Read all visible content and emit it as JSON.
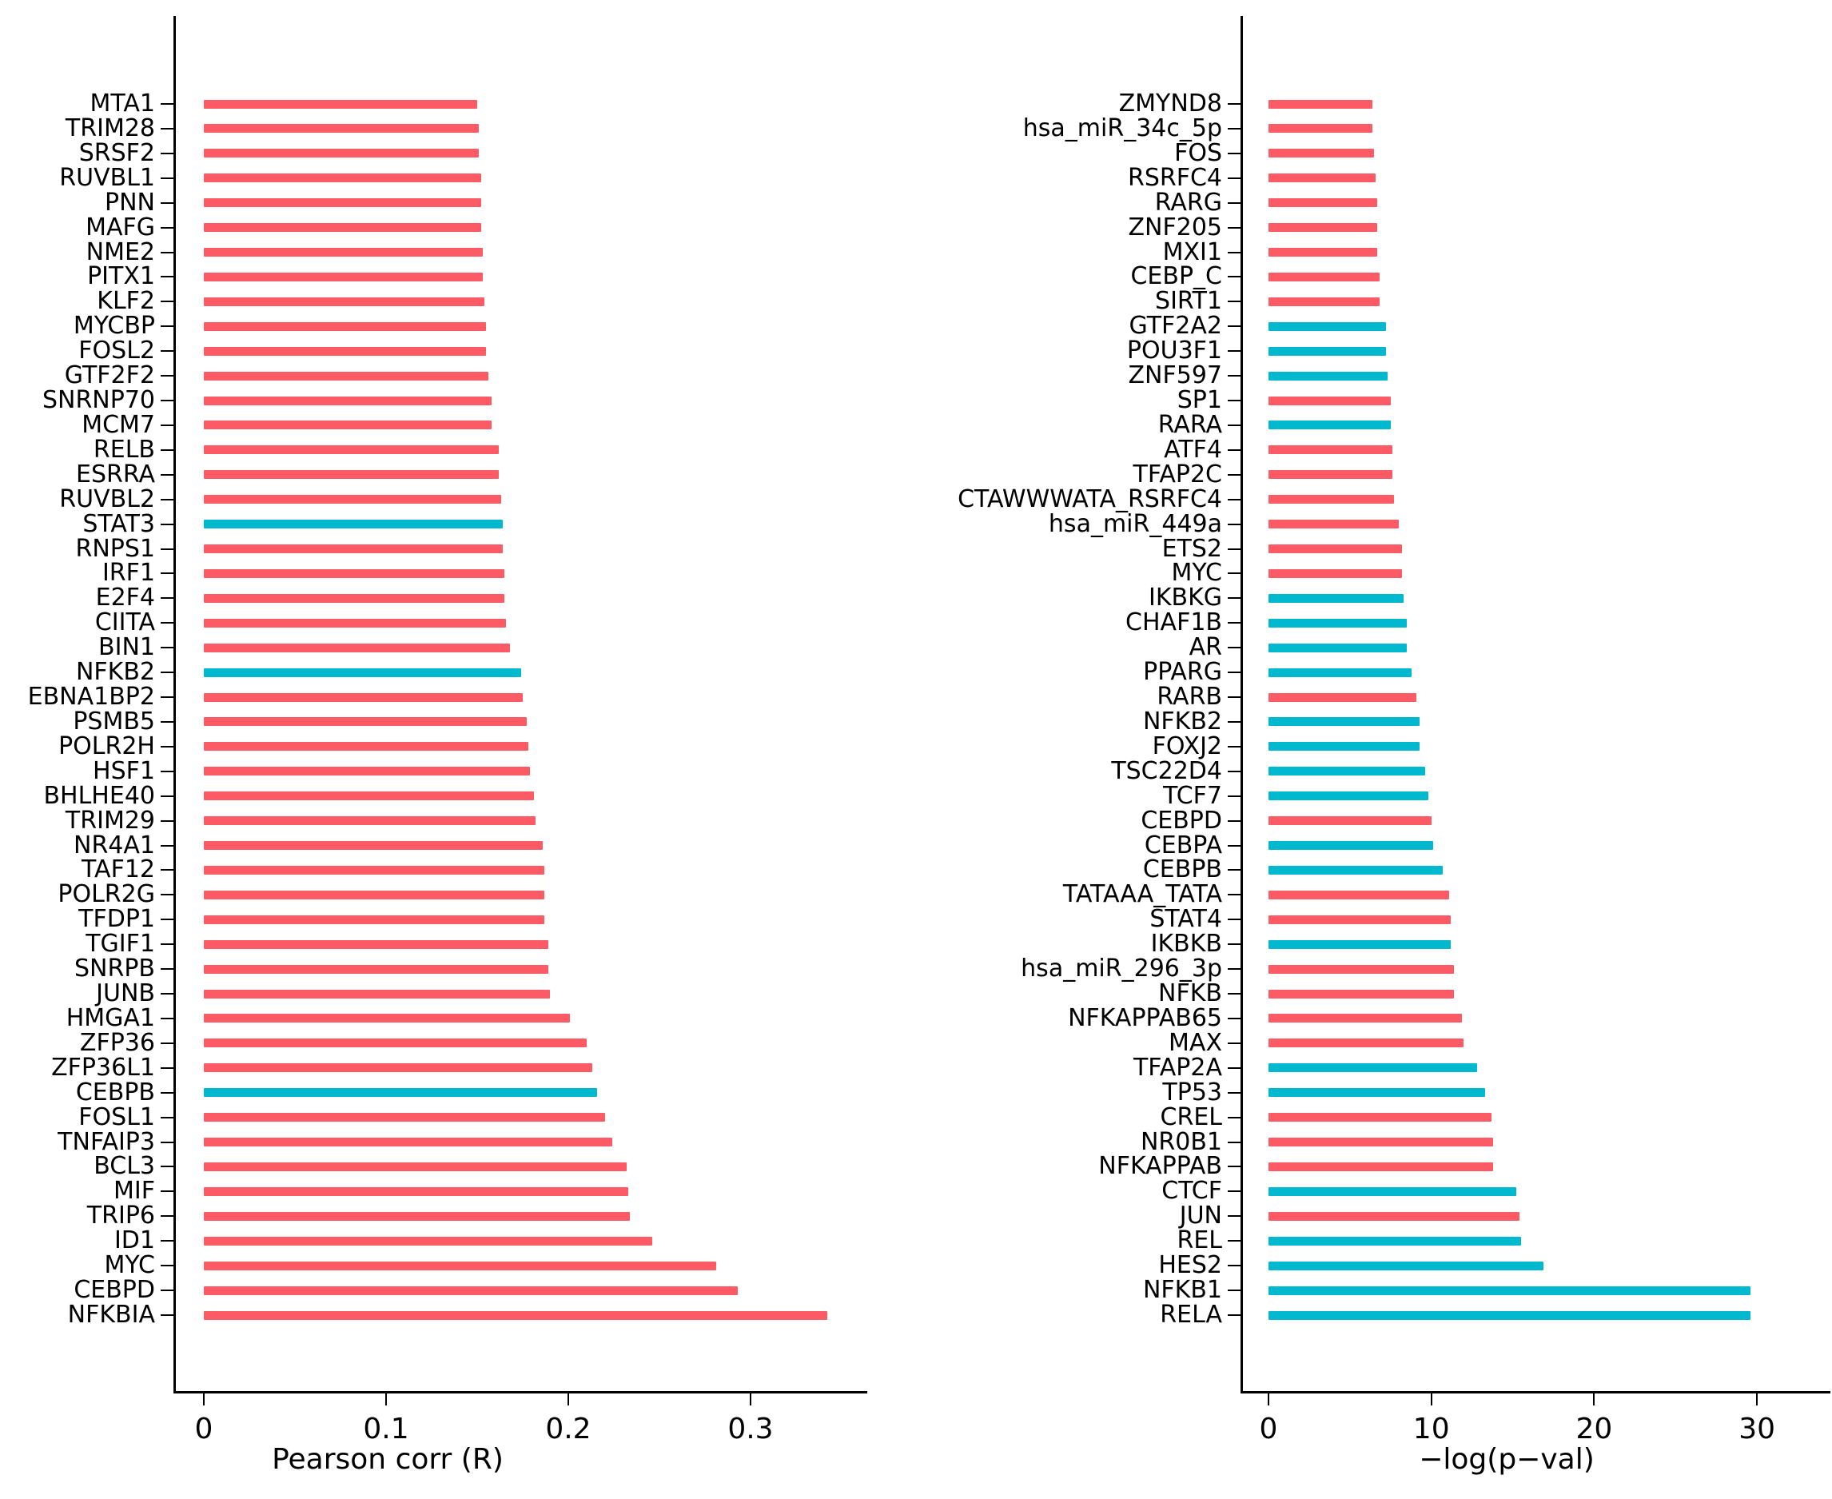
{
  "colors": {
    "red": "#FC5A64",
    "blue": "#00B9CF"
  },
  "chart_data": [
    {
      "type": "bar",
      "orientation": "horizontal",
      "xlabel": "Pearson corr (R)",
      "xlim": [
        -0.01535,
        0.36405
      ],
      "grid": false,
      "x_ticks": [
        {
          "value": 0,
          "label": "0"
        },
        {
          "value": 0.1,
          "label": "0.1"
        },
        {
          "value": 0.2,
          "label": "0.2"
        },
        {
          "value": 0.3,
          "label": "0.3"
        }
      ],
      "bars": [
        {
          "label": "MTA1",
          "value": 0.15,
          "color": "red"
        },
        {
          "label": "TRIM28",
          "value": 0.151,
          "color": "red"
        },
        {
          "label": "SRSF2",
          "value": 0.151,
          "color": "red"
        },
        {
          "label": "RUVBL1",
          "value": 0.152,
          "color": "red"
        },
        {
          "label": "PNN",
          "value": 0.152,
          "color": "red"
        },
        {
          "label": "MAFG",
          "value": 0.152,
          "color": "red"
        },
        {
          "label": "NME2",
          "value": 0.153,
          "color": "red"
        },
        {
          "label": "PITX1",
          "value": 0.153,
          "color": "red"
        },
        {
          "label": "KLF2",
          "value": 0.154,
          "color": "red"
        },
        {
          "label": "MYCBP",
          "value": 0.155,
          "color": "red"
        },
        {
          "label": "FOSL2",
          "value": 0.155,
          "color": "red"
        },
        {
          "label": "GTF2F2",
          "value": 0.156,
          "color": "red"
        },
        {
          "label": "SNRNP70",
          "value": 0.158,
          "color": "red"
        },
        {
          "label": "MCM7",
          "value": 0.158,
          "color": "red"
        },
        {
          "label": "RELB",
          "value": 0.162,
          "color": "red"
        },
        {
          "label": "ESRRA",
          "value": 0.162,
          "color": "red"
        },
        {
          "label": "RUVBL2",
          "value": 0.163,
          "color": "red"
        },
        {
          "label": "STAT3",
          "value": 0.164,
          "color": "blue"
        },
        {
          "label": "RNPS1",
          "value": 0.164,
          "color": "red"
        },
        {
          "label": "IRF1",
          "value": 0.165,
          "color": "red"
        },
        {
          "label": "E2F4",
          "value": 0.165,
          "color": "red"
        },
        {
          "label": "CIITA",
          "value": 0.166,
          "color": "red"
        },
        {
          "label": "BIN1",
          "value": 0.168,
          "color": "red"
        },
        {
          "label": "NFKB2",
          "value": 0.174,
          "color": "blue"
        },
        {
          "label": "EBNA1BP2",
          "value": 0.175,
          "color": "red"
        },
        {
          "label": "PSMB5",
          "value": 0.177,
          "color": "red"
        },
        {
          "label": "POLR2H",
          "value": 0.178,
          "color": "red"
        },
        {
          "label": "HSF1",
          "value": 0.179,
          "color": "red"
        },
        {
          "label": "BHLHE40",
          "value": 0.181,
          "color": "red"
        },
        {
          "label": "TRIM29",
          "value": 0.182,
          "color": "red"
        },
        {
          "label": "NR4A1",
          "value": 0.186,
          "color": "red"
        },
        {
          "label": "TAF12",
          "value": 0.187,
          "color": "red"
        },
        {
          "label": "POLR2G",
          "value": 0.187,
          "color": "red"
        },
        {
          "label": "TFDP1",
          "value": 0.187,
          "color": "red"
        },
        {
          "label": "TGIF1",
          "value": 0.189,
          "color": "red"
        },
        {
          "label": "SNRPB",
          "value": 0.189,
          "color": "red"
        },
        {
          "label": "JUNB",
          "value": 0.19,
          "color": "red"
        },
        {
          "label": "HMGA1",
          "value": 0.201,
          "color": "red"
        },
        {
          "label": "ZFP36",
          "value": 0.21,
          "color": "red"
        },
        {
          "label": "ZFP36L1",
          "value": 0.213,
          "color": "red"
        },
        {
          "label": "CEBPB",
          "value": 0.216,
          "color": "blue"
        },
        {
          "label": "FOSL1",
          "value": 0.22,
          "color": "red"
        },
        {
          "label": "TNFAIP3",
          "value": 0.224,
          "color": "red"
        },
        {
          "label": "BCL3",
          "value": 0.232,
          "color": "red"
        },
        {
          "label": "MIF",
          "value": 0.233,
          "color": "red"
        },
        {
          "label": "TRIP6",
          "value": 0.234,
          "color": "red"
        },
        {
          "label": "ID1",
          "value": 0.246,
          "color": "red"
        },
        {
          "label": "MYC",
          "value": 0.281,
          "color": "red"
        },
        {
          "label": "CEBPD",
          "value": 0.293,
          "color": "red"
        },
        {
          "label": "NFKBIA",
          "value": 0.342,
          "color": "red"
        }
      ]
    },
    {
      "type": "bar",
      "orientation": "horizontal",
      "xlabel": "−log(p−val)",
      "xlim": [
        -1.571,
        34.51
      ],
      "grid": false,
      "x_ticks": [
        {
          "value": 0,
          "label": "0"
        },
        {
          "value": 10,
          "label": "10"
        },
        {
          "value": 20,
          "label": "20"
        },
        {
          "value": 30,
          "label": "30"
        }
      ],
      "bars": [
        {
          "label": "ZMYND8",
          "value": 6.4,
          "color": "red"
        },
        {
          "label": "hsa_miR_34c_5p",
          "value": 6.4,
          "color": "red"
        },
        {
          "label": "FOS",
          "value": 6.5,
          "color": "red"
        },
        {
          "label": "RSRFC4",
          "value": 6.6,
          "color": "red"
        },
        {
          "label": "RARG",
          "value": 6.7,
          "color": "red"
        },
        {
          "label": "ZNF205",
          "value": 6.7,
          "color": "red"
        },
        {
          "label": "MXI1",
          "value": 6.7,
          "color": "red"
        },
        {
          "label": "CEBP_C",
          "value": 6.8,
          "color": "red"
        },
        {
          "label": "SIRT1",
          "value": 6.8,
          "color": "red"
        },
        {
          "label": "GTF2A2",
          "value": 7.2,
          "color": "blue"
        },
        {
          "label": "POU3F1",
          "value": 7.2,
          "color": "blue"
        },
        {
          "label": "ZNF597",
          "value": 7.3,
          "color": "blue"
        },
        {
          "label": "SP1",
          "value": 7.5,
          "color": "red"
        },
        {
          "label": "RARA",
          "value": 7.5,
          "color": "blue"
        },
        {
          "label": "ATF4",
          "value": 7.6,
          "color": "red"
        },
        {
          "label": "TFAP2C",
          "value": 7.6,
          "color": "red"
        },
        {
          "label": "CTAWWWATA_RSRFC4",
          "value": 7.7,
          "color": "red"
        },
        {
          "label": "hsa_miR_449a",
          "value": 8.0,
          "color": "red"
        },
        {
          "label": "ETS2",
          "value": 8.2,
          "color": "red"
        },
        {
          "label": "MYC",
          "value": 8.2,
          "color": "red"
        },
        {
          "label": "IKBKG",
          "value": 8.3,
          "color": "blue"
        },
        {
          "label": "CHAF1B",
          "value": 8.5,
          "color": "blue"
        },
        {
          "label": "AR",
          "value": 8.5,
          "color": "blue"
        },
        {
          "label": "PPARG",
          "value": 8.8,
          "color": "blue"
        },
        {
          "label": "RARB",
          "value": 9.1,
          "color": "red"
        },
        {
          "label": "NFKB2",
          "value": 9.3,
          "color": "blue"
        },
        {
          "label": "FOXJ2",
          "value": 9.3,
          "color": "blue"
        },
        {
          "label": "TSC22D4",
          "value": 9.6,
          "color": "blue"
        },
        {
          "label": "TCF7",
          "value": 9.8,
          "color": "blue"
        },
        {
          "label": "CEBPD",
          "value": 10.0,
          "color": "red"
        },
        {
          "label": "CEBPA",
          "value": 10.1,
          "color": "blue"
        },
        {
          "label": "CEBPB",
          "value": 10.7,
          "color": "blue"
        },
        {
          "label": "TATAAA_TATA",
          "value": 11.1,
          "color": "red"
        },
        {
          "label": "STAT4",
          "value": 11.2,
          "color": "red"
        },
        {
          "label": "IKBKB",
          "value": 11.2,
          "color": "blue"
        },
        {
          "label": "hsa_miR_296_3p",
          "value": 11.4,
          "color": "red"
        },
        {
          "label": "NFKB",
          "value": 11.4,
          "color": "red"
        },
        {
          "label": "NFKAPPAB65",
          "value": 11.9,
          "color": "red"
        },
        {
          "label": "MAX",
          "value": 12.0,
          "color": "red"
        },
        {
          "label": "TFAP2A",
          "value": 12.8,
          "color": "blue"
        },
        {
          "label": "TP53",
          "value": 13.3,
          "color": "blue"
        },
        {
          "label": "CREL",
          "value": 13.7,
          "color": "red"
        },
        {
          "label": "NR0B1",
          "value": 13.8,
          "color": "red"
        },
        {
          "label": "NFKAPPAB",
          "value": 13.8,
          "color": "red"
        },
        {
          "label": "CTCF",
          "value": 15.2,
          "color": "blue"
        },
        {
          "label": "JUN",
          "value": 15.4,
          "color": "red"
        },
        {
          "label": "REL",
          "value": 15.5,
          "color": "blue"
        },
        {
          "label": "HES2",
          "value": 16.9,
          "color": "blue"
        },
        {
          "label": "NFKB1",
          "value": 29.6,
          "color": "blue"
        },
        {
          "label": "RELA",
          "value": 29.6,
          "color": "blue"
        }
      ]
    }
  ]
}
